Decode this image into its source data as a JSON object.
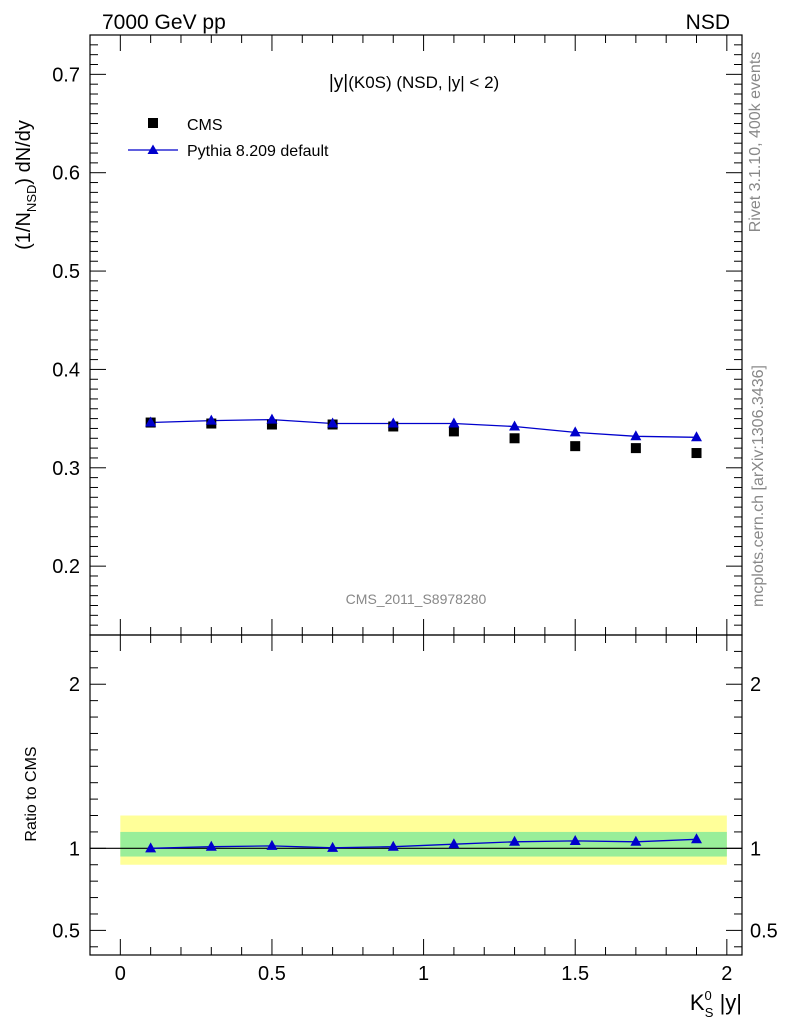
{
  "header": {
    "energy_label": "7000 GeV pp",
    "process_label": "NSD"
  },
  "side_labels": {
    "rivet": "Rivet 3.1.10,  400k events",
    "source": "mcplots.cern.ch [arXiv:1306.3436]"
  },
  "chart_data": [
    {
      "type": "scatter",
      "title_prefix": "|y|",
      "title_main": "(K0S) (NSD, |y| < 2)",
      "ylabel_a": "(1/N",
      "ylabel_sub": "NSD",
      "ylabel_b": ") dN/dy",
      "watermark": "CMS_2011_S8978280",
      "xlim": [
        -0.1,
        2.05
      ],
      "ylim": [
        0.13,
        0.74
      ],
      "yticks": [
        {
          "v": 0.2,
          "label": "0.2"
        },
        {
          "v": 0.3,
          "label": "0.3"
        },
        {
          "v": 0.4,
          "label": "0.4"
        },
        {
          "v": 0.5,
          "label": "0.5"
        },
        {
          "v": 0.6,
          "label": "0.6"
        },
        {
          "v": 0.7,
          "label": "0.7"
        }
      ],
      "legend_position": "top-left",
      "series": [
        {
          "name": "CMS",
          "marker": "square",
          "color": "#000000",
          "x": [
            0.1,
            0.3,
            0.5,
            0.7,
            0.9,
            1.1,
            1.3,
            1.5,
            1.7,
            1.9
          ],
          "y": [
            0.346,
            0.345,
            0.344,
            0.344,
            0.342,
            0.337,
            0.33,
            0.322,
            0.32,
            0.315
          ]
        },
        {
          "name": "Pythia 8.209 default",
          "marker": "triangle",
          "color": "#0000cc",
          "x": [
            0.1,
            0.3,
            0.5,
            0.7,
            0.9,
            1.1,
            1.3,
            1.5,
            1.7,
            1.9
          ],
          "y": [
            0.346,
            0.348,
            0.349,
            0.345,
            0.345,
            0.345,
            0.342,
            0.336,
            0.332,
            0.331
          ]
        }
      ]
    },
    {
      "type": "line",
      "ylabel": "Ratio to CMS",
      "xlabel_main": "K",
      "xlabel_sup": "0",
      "xlabel_sub": "S",
      "xlabel_tail": " |y|",
      "xlim": [
        -0.1,
        2.05
      ],
      "ylim": [
        0.35,
        2.3
      ],
      "xticks": [
        {
          "v": 0,
          "label": "0"
        },
        {
          "v": 0.5,
          "label": "0.5"
        },
        {
          "v": 1,
          "label": "1"
        },
        {
          "v": 1.5,
          "label": "1.5"
        },
        {
          "v": 2,
          "label": "2"
        }
      ],
      "yticks": [
        {
          "v": 0.5,
          "label": "0.5"
        },
        {
          "v": 1,
          "label": "1"
        },
        {
          "v": 2,
          "label": "2"
        }
      ],
      "bands": [
        {
          "name": "outer",
          "x_range": [
            0,
            2
          ],
          "y_range": [
            0.9,
            1.2
          ],
          "color": "#ffff99"
        },
        {
          "name": "inner",
          "x_range": [
            0,
            2
          ],
          "y_range": [
            0.95,
            1.1
          ],
          "color": "#99ee99"
        }
      ],
      "reference": 1.0,
      "series": [
        {
          "name": "Pythia 8.209 default",
          "color": "#0000cc",
          "x": [
            0.1,
            0.3,
            0.5,
            0.7,
            0.9,
            1.1,
            1.3,
            1.5,
            1.7,
            1.9
          ],
          "y": [
            1.0,
            1.01,
            1.015,
            1.003,
            1.01,
            1.025,
            1.04,
            1.045,
            1.04,
            1.055
          ]
        }
      ]
    }
  ]
}
